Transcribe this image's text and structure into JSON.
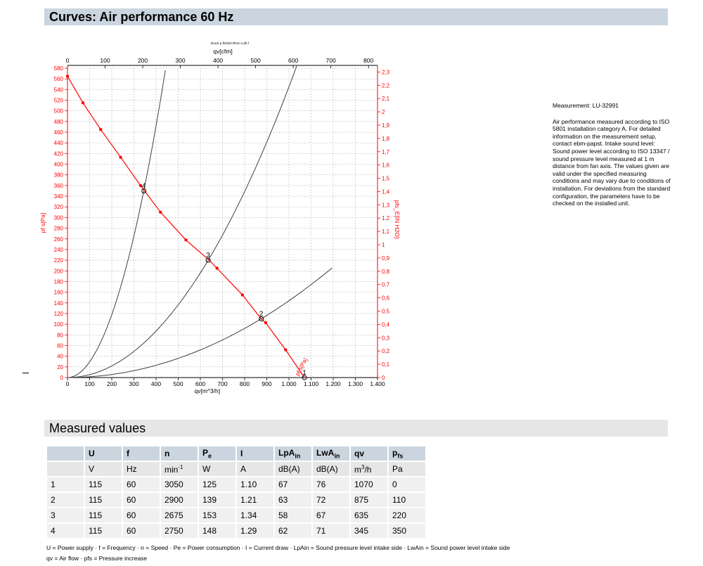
{
  "page_title": "Curves: Air performance 60 Hz",
  "section_title": "Measured values",
  "colors": {
    "red": "#ff0000",
    "grid": "#b4b4b4",
    "header_blue": "#cbd5df",
    "header_gray": "#e6e6e6",
    "row": "#f0f0f0"
  },
  "notes": {
    "measurement": "Measurement: LU-32991",
    "description": "Air performance measured according to ISO 5801 installation category A. For detailed information on the measurement setup, contact ebm-papst. Intake sound level: Sound power level according to ISO 13347 / sound pressure level measured at 1 m distance from fan axis. The values given are valid under the specified measuring conditions and may vary due to conditions of installation. For deviations from the standard configuration, the parameters have to be checked on the installed unit."
  },
  "chart_data": {
    "type": "line",
    "top_caption": "Druck p f(Kl)tel Rhon Luftr.f",
    "xlabel": "qv[m^3/h]",
    "xlabel_top": "qv[cfm]",
    "ylabel_left": "pf s[Pa]",
    "ylabel_right": "pfs_E[IN H2O]",
    "curve_label": "pf s[Pa]",
    "x_ticks": [
      "0",
      "100",
      "200",
      "300",
      "400",
      "500",
      "600",
      "700",
      "800",
      "900",
      "1.000",
      "1.100",
      "1.200",
      "1.300",
      "1.400"
    ],
    "x_ticks_top": [
      "0",
      "100",
      "200",
      "300",
      "400",
      "500",
      "600",
      "700",
      "800"
    ],
    "y_ticks_left": [
      "0",
      "20",
      "40",
      "60",
      "80",
      "100",
      "120",
      "140",
      "160",
      "180",
      "200",
      "220",
      "240",
      "260",
      "280",
      "300",
      "320",
      "340",
      "360",
      "380",
      "400",
      "420",
      "440",
      "460",
      "480",
      "500",
      "520",
      "540",
      "560",
      "580"
    ],
    "y_ticks_right": [
      "0",
      "0,1",
      "0,2",
      "0,3",
      "0,4",
      "0,5",
      "0,6",
      "0,7",
      "0,8",
      "0,9",
      "1",
      "1,1",
      "1,2",
      "1,3",
      "1,4",
      "1,5",
      "1,6",
      "1,7",
      "1,8",
      "1,9",
      "2",
      "2,1",
      "2,2",
      "2,3"
    ],
    "xlim": [
      0,
      1400
    ],
    "ylim": [
      0,
      580
    ],
    "grid": true,
    "series": [
      {
        "name": "pf s[Pa]",
        "color": "#ff0000",
        "x": [
          0,
          70,
          150,
          240,
          330,
          420,
          535,
          640,
          675,
          790,
          875,
          895,
          985,
          1070
        ],
        "y": [
          565,
          515,
          465,
          413,
          360,
          310,
          258,
          220,
          205,
          155,
          110,
          103,
          52,
          0
        ],
        "markers_x": [
          0,
          70,
          150,
          240,
          330,
          420,
          535,
          675,
          790,
          895,
          985
        ],
        "markers_y": [
          565,
          515,
          465,
          413,
          360,
          310,
          258,
          205,
          155,
          103,
          52
        ]
      }
    ],
    "system_curves": [
      {
        "k": 0.00295,
        "xmax": 442
      },
      {
        "k": 0.000545,
        "xmax": 1035
      },
      {
        "k": 0.000144,
        "xmax": 1195
      }
    ],
    "operating_points": [
      {
        "label": "1",
        "x": 1070,
        "y": 0
      },
      {
        "label": "2",
        "x": 875,
        "y": 110
      },
      {
        "label": "3",
        "x": 635,
        "y": 220
      },
      {
        "label": "4",
        "x": 345,
        "y": 350
      }
    ]
  },
  "table": {
    "header": [
      "",
      "U",
      "f",
      "n",
      "Pe",
      "I",
      "LpAin",
      "LwAin",
      "qv",
      "pfs"
    ],
    "units": [
      "",
      "V",
      "Hz",
      "min-1",
      "W",
      "A",
      "dB(A)",
      "dB(A)",
      "m3/h",
      "Pa"
    ],
    "rows": [
      [
        "1",
        "115",
        "60",
        "3050",
        "125",
        "1.10",
        "67",
        "76",
        "1070",
        "0"
      ],
      [
        "2",
        "115",
        "60",
        "2900",
        "139",
        "1.21",
        "63",
        "72",
        "875",
        "110"
      ],
      [
        "3",
        "115",
        "60",
        "2675",
        "153",
        "1.34",
        "58",
        "67",
        "635",
        "220"
      ],
      [
        "4",
        "115",
        "60",
        "2750",
        "148",
        "1.29",
        "62",
        "71",
        "345",
        "350"
      ]
    ]
  },
  "legend": {
    "line1": "U = Power supply · f = Frequency · n = Speed · Pe = Power consumption · I = Current draw · LpAin = Sound pressure level intake side · LwAin = Sound power level intake side",
    "line2": "qv = Air flow · pfs = Pressure increase"
  }
}
